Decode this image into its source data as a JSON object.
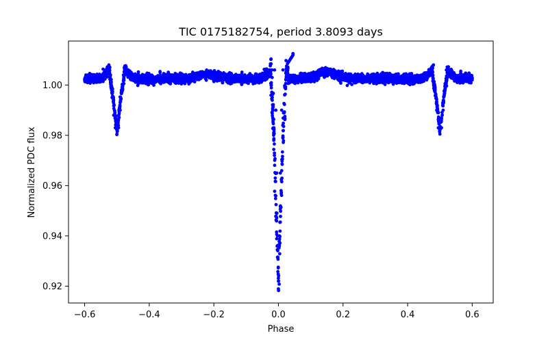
{
  "chart_data": {
    "type": "scatter",
    "title": "TIC 0175182754, period 3.8093 days",
    "xlabel": "Phase",
    "ylabel": "Normalized PDC flux",
    "xlim": [
      -0.65,
      0.665
    ],
    "ylim": [
      0.9133,
      1.0175
    ],
    "xticks": [
      -0.6,
      -0.4,
      -0.2,
      0.0,
      0.2,
      0.4,
      0.6
    ],
    "xtick_labels": [
      "−0.6",
      "−0.4",
      "−0.2",
      "0.0",
      "0.2",
      "0.4",
      "0.6"
    ],
    "yticks": [
      0.92,
      0.94,
      0.96,
      0.98,
      1.0
    ],
    "ytick_labels": [
      "0.92",
      "0.94",
      "0.96",
      "0.98",
      "1.00"
    ],
    "grid": false,
    "marker_color": "#0000ff",
    "series": [
      {
        "name": "PDC flux",
        "phase_range": [
          -0.6,
          0.6
        ],
        "baseline_flux": 1.0025,
        "baseline_scatter": 0.0016,
        "primary_eclipse": {
          "center_phase": 0.0,
          "min_flux": 0.922,
          "half_width_phase": 0.025
        },
        "secondary_eclipses": [
          {
            "center_phase": -0.5,
            "min_flux": 0.981,
            "half_width_phase": 0.022
          },
          {
            "center_phase": 0.5,
            "min_flux": 0.981,
            "half_width_phase": 0.022
          }
        ],
        "samples": [
          [
            -0.6,
            1.002
          ],
          [
            -0.58,
            1.003
          ],
          [
            -0.56,
            1.0035
          ],
          [
            -0.54,
            1.005
          ],
          [
            -0.525,
            1.008
          ],
          [
            -0.52,
            1.004
          ],
          [
            -0.515,
            0.995
          ],
          [
            -0.51,
            0.988
          ],
          [
            -0.505,
            0.983
          ],
          [
            -0.5,
            0.9805
          ],
          [
            -0.495,
            0.983
          ],
          [
            -0.49,
            0.99
          ],
          [
            -0.485,
            0.998
          ],
          [
            -0.48,
            1.004
          ],
          [
            -0.46,
            1.003
          ],
          [
            -0.4,
            1.0025
          ],
          [
            -0.3,
            1.002
          ],
          [
            -0.22,
            1.004
          ],
          [
            -0.2,
            1.003
          ],
          [
            -0.1,
            1.002
          ],
          [
            -0.05,
            1.003
          ],
          [
            -0.02,
            1.006
          ],
          [
            -0.012,
            1.006
          ],
          [
            -0.008,
            0.99
          ],
          [
            -0.005,
            0.965
          ],
          [
            -0.003,
            0.94
          ],
          [
            0.0,
            0.922
          ],
          [
            0.003,
            0.94
          ],
          [
            0.006,
            0.965
          ],
          [
            0.01,
            0.99
          ],
          [
            0.014,
            1.006
          ],
          [
            0.03,
            1.004
          ],
          [
            0.045,
            1.0125
          ],
          [
            0.1,
            1.002
          ],
          [
            0.15,
            1.005
          ],
          [
            0.2,
            1.002
          ],
          [
            0.3,
            1.002
          ],
          [
            0.4,
            1.003
          ],
          [
            0.46,
            1.0045
          ],
          [
            0.48,
            1.008
          ],
          [
            0.485,
            0.998
          ],
          [
            0.49,
            0.99
          ],
          [
            0.495,
            0.983
          ],
          [
            0.5,
            0.9805
          ],
          [
            0.505,
            0.983
          ],
          [
            0.51,
            0.99
          ],
          [
            0.515,
            0.998
          ],
          [
            0.52,
            1.006
          ],
          [
            0.55,
            1.003
          ],
          [
            0.6,
            1.002
          ]
        ]
      }
    ]
  }
}
